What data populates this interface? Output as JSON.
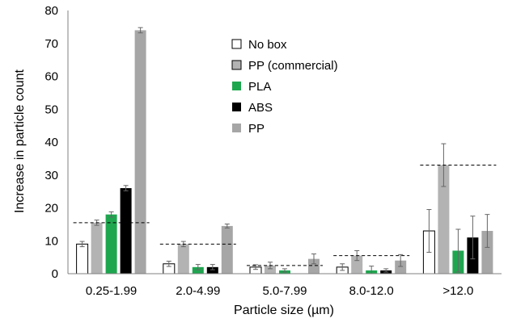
{
  "chart_data": {
    "type": "bar",
    "title": "",
    "xlabel": "Particle size (µm)",
    "ylabel": "Increase in particle count",
    "ylim": [
      0,
      80
    ],
    "yticks": [
      0,
      10,
      20,
      30,
      40,
      50,
      60,
      70,
      80
    ],
    "categories": [
      "0.25-1.99",
      "2.0-4.99",
      "5.0-7.99",
      "8.0-12.0",
      ">12.0"
    ],
    "grid": false,
    "legend_position": "top-center",
    "series": [
      {
        "name": "No box",
        "color": "#ffffff",
        "values": [
          9,
          3,
          2,
          2,
          13
        ],
        "errors": [
          0.8,
          0.8,
          0.7,
          1.0,
          6.5
        ]
      },
      {
        "name": "PP (commercial)",
        "color": "#b3b3b3",
        "values": [
          15.5,
          9,
          2.5,
          5.5,
          33
        ],
        "errors": [
          0.8,
          0.8,
          1.0,
          1.5,
          6.5
        ]
      },
      {
        "name": "PLA",
        "color": "#1ea64f",
        "values": [
          18,
          2,
          1,
          1,
          7
        ],
        "errors": [
          0.8,
          0.8,
          0.5,
          1.3,
          6.5
        ]
      },
      {
        "name": "ABS",
        "color": "#000000",
        "values": [
          26,
          2,
          0,
          1,
          11
        ],
        "errors": [
          0.8,
          0.8,
          0,
          0.5,
          6.5
        ]
      },
      {
        "name": "PP",
        "color": "#a6a6a6",
        "values": [
          74,
          14.5,
          4.5,
          4,
          13
        ],
        "errors": [
          0.8,
          0.6,
          1.5,
          1.8,
          5.0
        ]
      }
    ],
    "reference_lines": [
      15.5,
      9,
      2.5,
      5.5,
      33
    ]
  }
}
